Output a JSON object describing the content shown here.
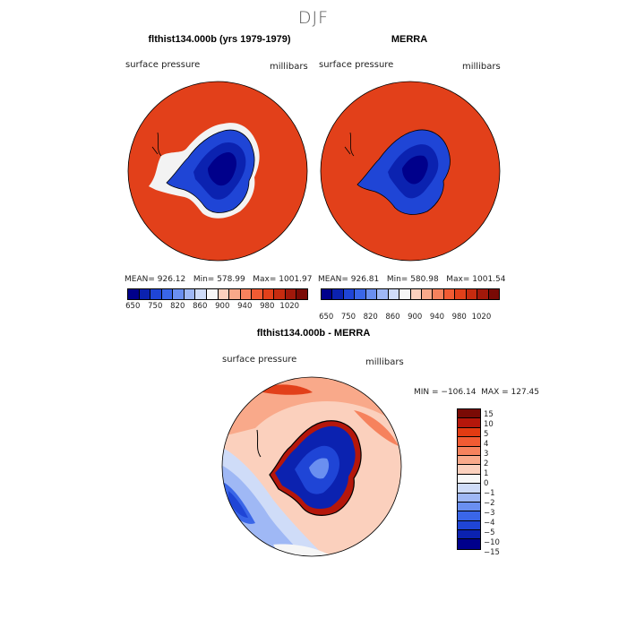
{
  "season": "DJF",
  "panels": {
    "left": {
      "title": "flthist134.000b (yrs 1979-1979)",
      "variable": "surface pressure",
      "units": "millibars",
      "stats": "MEAN= 926.12   Min= 578.99   Max= 1001.97"
    },
    "right": {
      "title": "MERRA",
      "variable": "surface pressure",
      "units": "millibars",
      "stats": "MEAN= 926.81   Min= 580.98   Max= 1001.54"
    },
    "diff": {
      "title": "flthist134.000b - MERRA",
      "variable": "surface pressure",
      "units": "millibars",
      "stats": "MIN = −106.14  MAX = 127.45"
    }
  },
  "colorbar_top": {
    "colors": [
      "#00008b",
      "#0b22b0",
      "#1f45d6",
      "#3a66e8",
      "#6a8ff0",
      "#9fb8f5",
      "#cfdcf8",
      "#f7f7f7",
      "#fbd0bd",
      "#f9a98a",
      "#f6825d",
      "#f15b33",
      "#e2401a",
      "#c62b0f",
      "#a1180a",
      "#7a0a05"
    ],
    "labels": [
      "650",
      "750",
      "820",
      "860",
      "900",
      "940",
      "980",
      "1020"
    ]
  },
  "colorbar_diff": {
    "colors": [
      "#7a0a05",
      "#b5170b",
      "#e23b12",
      "#f15b33",
      "#f6825d",
      "#f9a98a",
      "#fbd0bd",
      "#f7f7f7",
      "#cfdcf8",
      "#9fb8f5",
      "#6a8ff0",
      "#3a66e8",
      "#1f45d6",
      "#0b22b0",
      "#00008b"
    ],
    "labels": [
      "15",
      "10",
      "5",
      "4",
      "3",
      "2",
      "1",
      "0",
      "−1",
      "−2",
      "−3",
      "−4",
      "−5",
      "−10",
      "−15"
    ]
  }
}
